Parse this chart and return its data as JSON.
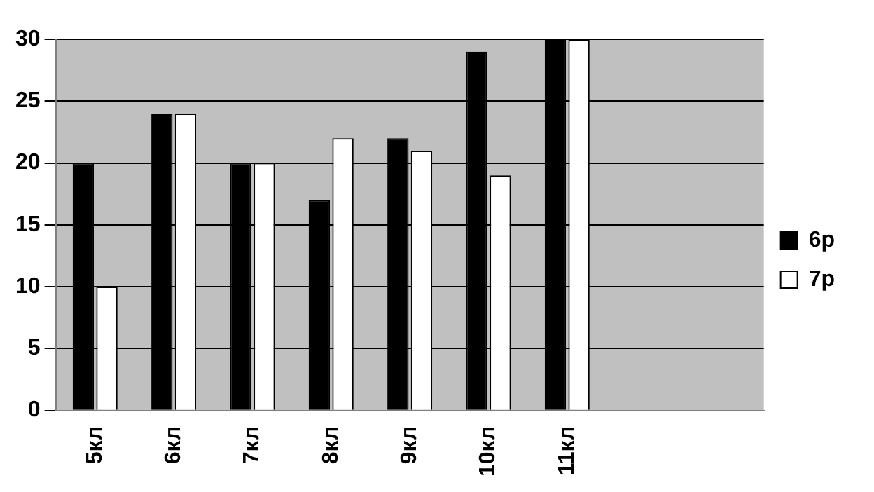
{
  "chart_data": {
    "type": "bar",
    "categories": [
      "5кл",
      "6кл",
      "7кл",
      "8кл",
      "9кл",
      "10кл",
      "11кл",
      null,
      null
    ],
    "series": [
      {
        "name": "6р",
        "color": "#000000",
        "values": [
          20,
          24,
          20,
          17,
          22,
          29,
          30,
          null,
          null
        ]
      },
      {
        "name": "7р",
        "color": "#ffffff",
        "values": [
          10,
          24,
          20,
          22,
          21,
          19,
          30,
          null,
          null
        ]
      }
    ],
    "ylim": [
      0,
      30
    ],
    "yticks": [
      0,
      5,
      10,
      15,
      20,
      25,
      30
    ],
    "grid": "y",
    "legend": "right"
  }
}
